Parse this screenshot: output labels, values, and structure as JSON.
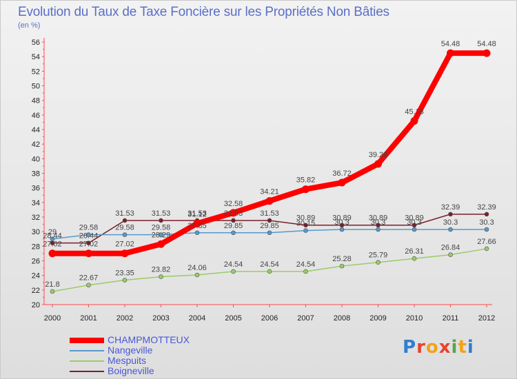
{
  "title": "Evolution du Taux de Taxe Foncière sur les Propriétés Non Bâties",
  "unit_label": "(en %)",
  "logo_text": "Proxiti",
  "chart_data": {
    "type": "line",
    "title": "Evolution du Taux de Taxe Foncière sur les Propriétés Non Bâties",
    "ylabel": "(en %)",
    "xlabel": "",
    "ylim": [
      20,
      56
    ],
    "yticks": [
      20,
      22,
      24,
      26,
      28,
      30,
      32,
      34,
      36,
      38,
      40,
      42,
      44,
      46,
      48,
      50,
      52,
      54,
      56
    ],
    "categories": [
      "2000",
      "2001",
      "2002",
      "2003",
      "2004",
      "2005",
      "2006",
      "2007",
      "2008",
      "2009",
      "2010",
      "2011",
      "2012"
    ],
    "grid": false,
    "legend_position": "bottom-left",
    "series": [
      {
        "name": "Boigneville",
        "color": "#7a1f2b",
        "values": [
          28.44,
          28.44,
          31.53,
          31.53,
          31.53,
          31.53,
          31.53,
          30.89,
          30.89,
          30.89,
          30.89,
          32.39,
          32.39
        ],
        "labels": [
          "28.44",
          "28.44",
          "31.53",
          "31.53",
          "31.53",
          "31.53",
          "31.53",
          "30.89",
          "30.89",
          "30.89",
          "30.89",
          "32.39",
          "32.39"
        ]
      },
      {
        "name": "Nangeville",
        "color": "#5599cc",
        "values": [
          29,
          29.58,
          29.58,
          29.58,
          29.85,
          29.85,
          29.85,
          30.15,
          30.3,
          30.3,
          30.3,
          30.3,
          30.3
        ],
        "labels": [
          "29",
          "29.58",
          "29.58",
          "29.58",
          "29.85",
          "29.85",
          "29.85",
          "30.15",
          "30.3",
          "30.3",
          "30.3",
          "30.3",
          "30.3"
        ]
      },
      {
        "name": "Mespuits",
        "color": "#99cc66",
        "values": [
          21.8,
          22.67,
          23.35,
          23.82,
          24.06,
          24.54,
          24.54,
          24.54,
          25.28,
          25.79,
          26.31,
          26.84,
          27.66
        ],
        "labels": [
          "21.8",
          "22.67",
          "23.35",
          "23.82",
          "24.06",
          "24.54",
          "24.54",
          "24.54",
          "25.28",
          "25.79",
          "26.31",
          "26.84",
          "27.66"
        ]
      },
      {
        "name": "CHAMPMOTTEUX",
        "color": "#ff0000",
        "values": [
          27.02,
          27.02,
          27.02,
          28.29,
          31.12,
          32.58,
          34.21,
          35.82,
          36.72,
          39.29,
          45.18,
          54.48,
          54.48
        ],
        "labels": [
          "27.02",
          "27.02",
          "27.02",
          "28.29",
          "31.12",
          "32.58",
          "34.21",
          "35.82",
          "36.72",
          "39.29",
          "45.18",
          "54.48",
          "54.48"
        ]
      }
    ],
    "legend_order": [
      "CHAMPMOTTEUX",
      "Nangeville",
      "Mespuits",
      "Boigneville"
    ]
  }
}
